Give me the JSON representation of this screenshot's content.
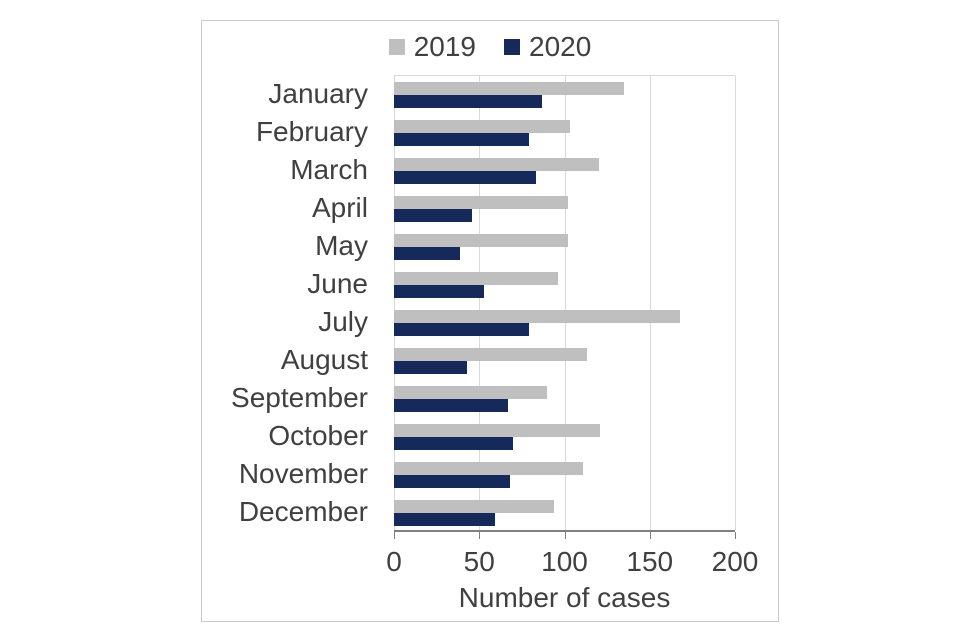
{
  "figure": {
    "background": "#ffffff",
    "frame_border_color": "#c9c9c9"
  },
  "legend": [
    {
      "label": "2019",
      "color": "#bfbfbf"
    },
    {
      "label": "2020",
      "color": "#16295b"
    }
  ],
  "colors": {
    "bar_2019": "#bfbfbf",
    "bar_2020": "#16295b",
    "gridline": "#d9d9d9",
    "axis_line": "#808080",
    "text": "#404040"
  },
  "chart_data": {
    "type": "bar",
    "orientation": "horizontal",
    "title": "",
    "xlabel": "Number of cases",
    "ylabel": "",
    "xlim": [
      0,
      200
    ],
    "xticks": [
      0,
      50,
      100,
      150,
      200
    ],
    "grid": "vertical",
    "legend_position": "top",
    "categories": [
      "January",
      "February",
      "March",
      "April",
      "May",
      "June",
      "July",
      "August",
      "September",
      "October",
      "November",
      "December"
    ],
    "series": [
      {
        "name": "2019",
        "color": "#bfbfbf",
        "values": [
          135,
          103,
          120,
          102,
          102,
          96,
          168,
          113,
          90,
          121,
          111,
          94
        ]
      },
      {
        "name": "2020",
        "color": "#16295b",
        "values": [
          87,
          79,
          83,
          46,
          39,
          53,
          79,
          43,
          67,
          70,
          68,
          59
        ]
      }
    ]
  }
}
